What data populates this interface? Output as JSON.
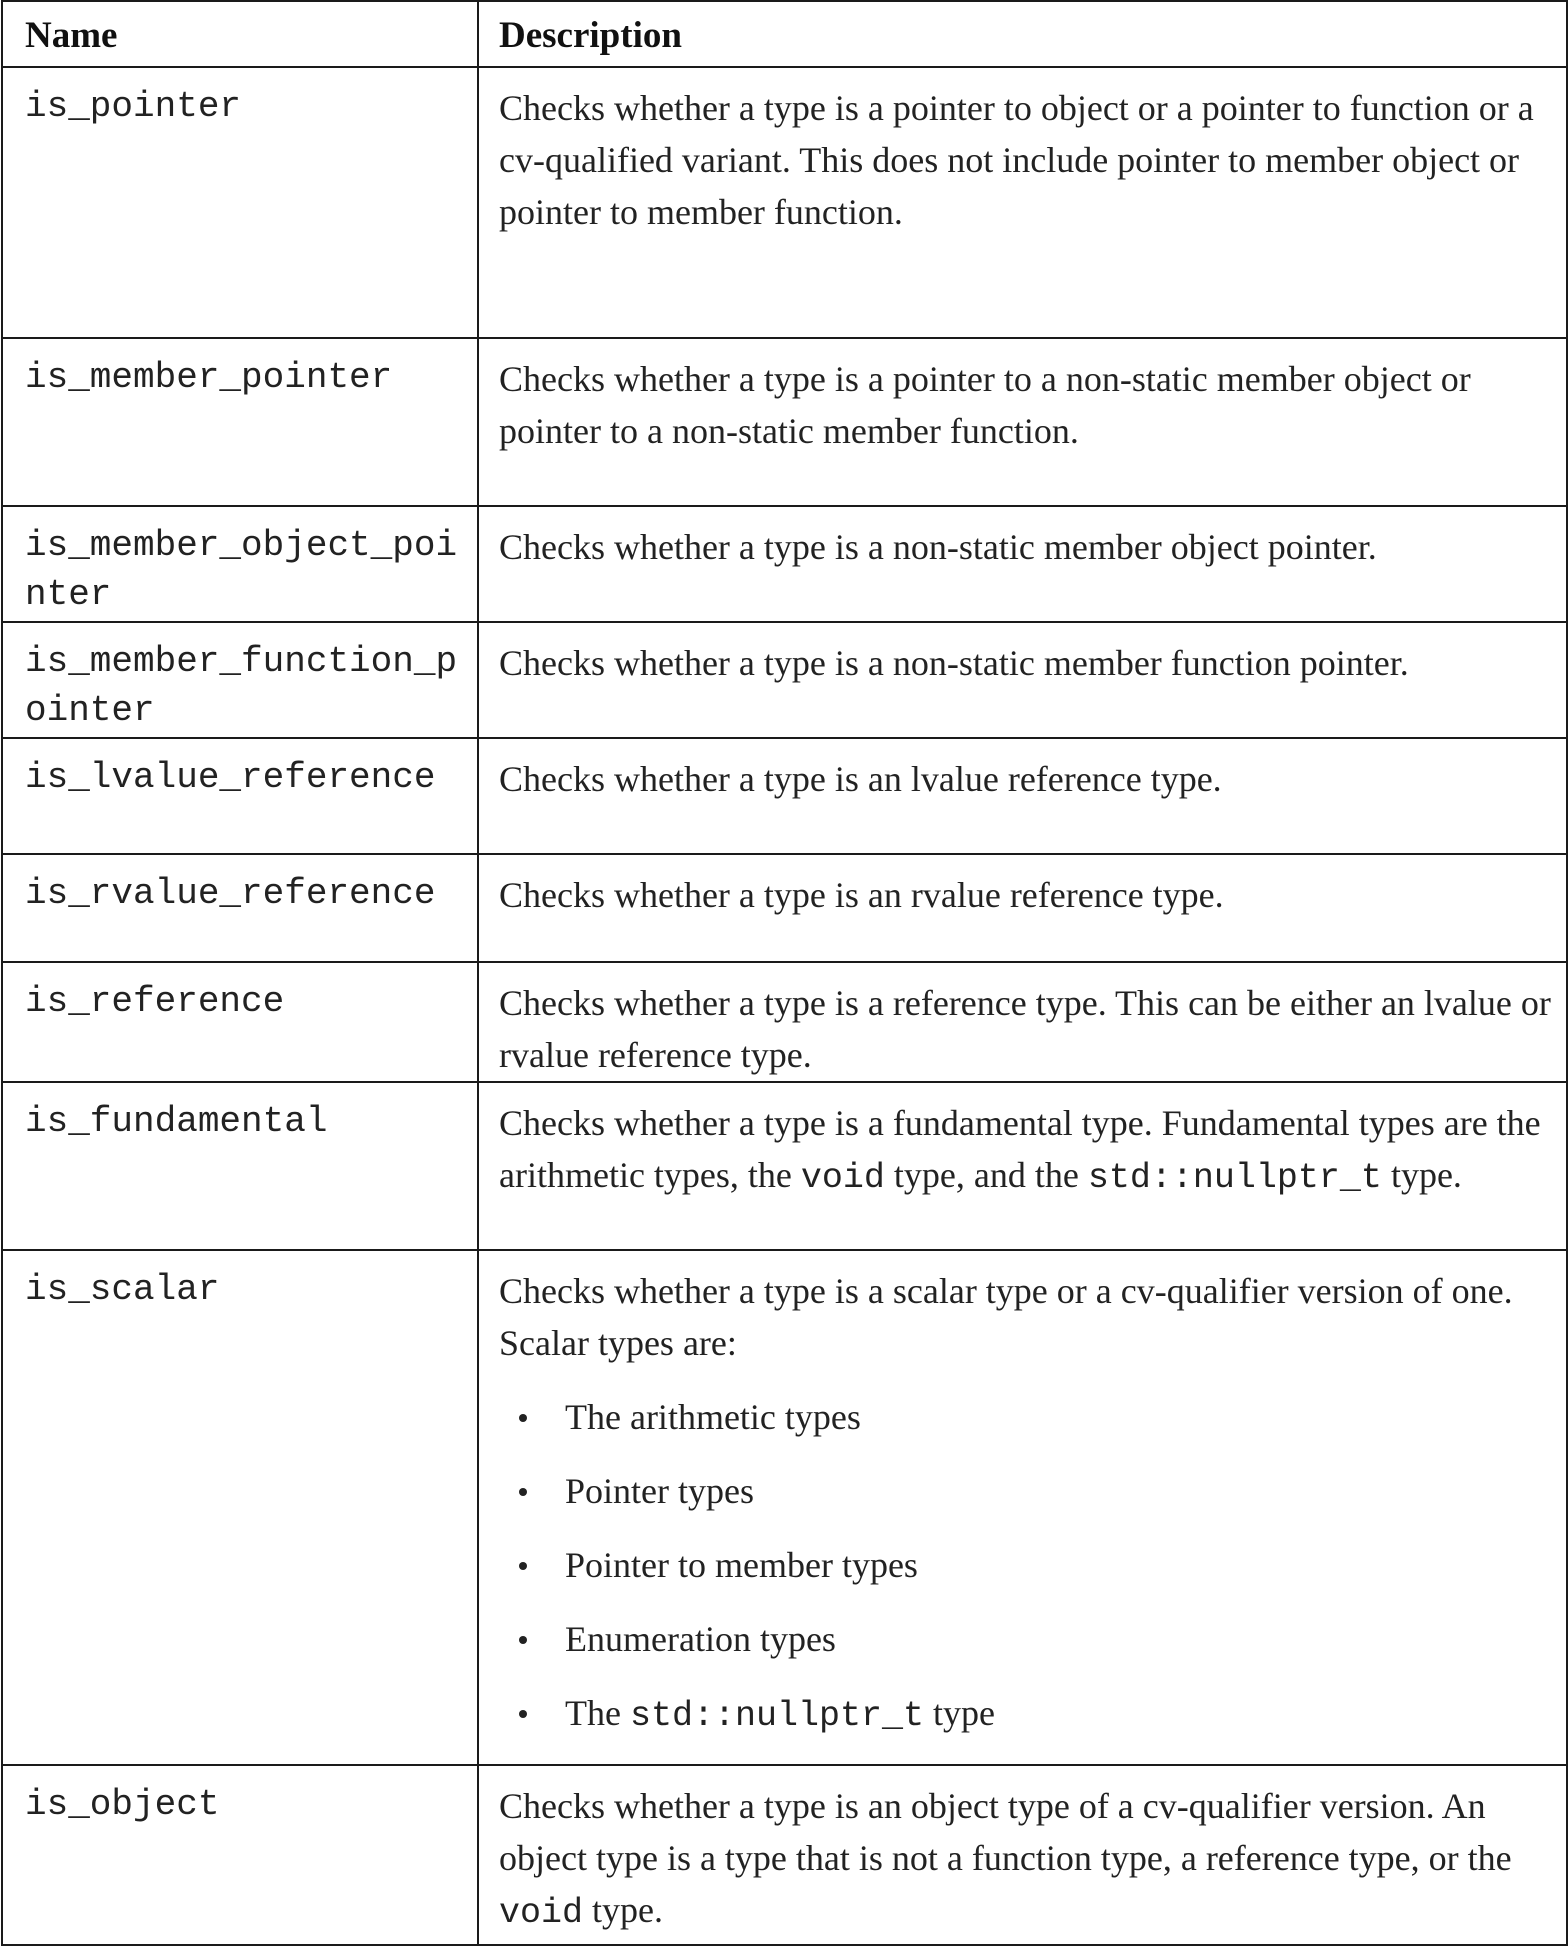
{
  "table": {
    "headers": {
      "name": "Name",
      "description": "Description"
    },
    "rows": [
      {
        "name": "is_pointer",
        "description": "Checks whether a type is a pointer to object or a pointer to function or a cv-qualified variant. This does not include pointer to member object or pointer to member function."
      },
      {
        "name": "is_member_pointer",
        "description": "Checks whether a type is a pointer to a non-static member object or pointer to a non-static member function."
      },
      {
        "name": "is_member_object_pointer",
        "description": "Checks whether a type is a non-static member object pointer."
      },
      {
        "name": "is_member_function_pointer",
        "description": "Checks whether a type is a non-static member function pointer."
      },
      {
        "name": "is_lvalue_reference",
        "description": "Checks whether a type is an lvalue reference type."
      },
      {
        "name": "is_rvalue_reference",
        "description": "Checks whether a type is an rvalue reference type."
      },
      {
        "name": "is_reference",
        "description": "Checks whether a type is a reference type. This can be either an lvalue or rvalue reference type."
      },
      {
        "name": "is_fundamental",
        "desc_parts": {
          "a": "Checks whether a type is a fundamental type. Fundamental types are the arithmetic types, the ",
          "code1": "void",
          "b": " type, and the ",
          "code2": "std::nullptr_t",
          "c": " type."
        }
      },
      {
        "name": "is_scalar",
        "intro": "Checks whether a type is a scalar type or a cv-qualifier version of one. Scalar types are:",
        "bullets": [
          "The arithmetic types",
          "Pointer types",
          "Pointer to member types",
          "Enumeration types"
        ],
        "last_bullet": {
          "a": "The ",
          "code": "std::nullptr_t",
          "b": " type"
        }
      },
      {
        "name": "is_object",
        "desc_parts": {
          "a": "Checks whether a type is an object type of a cv-qualifier version. An object type is a type that is not a function type, a reference type, or the ",
          "code1": "void",
          "b": " type."
        }
      }
    ]
  }
}
